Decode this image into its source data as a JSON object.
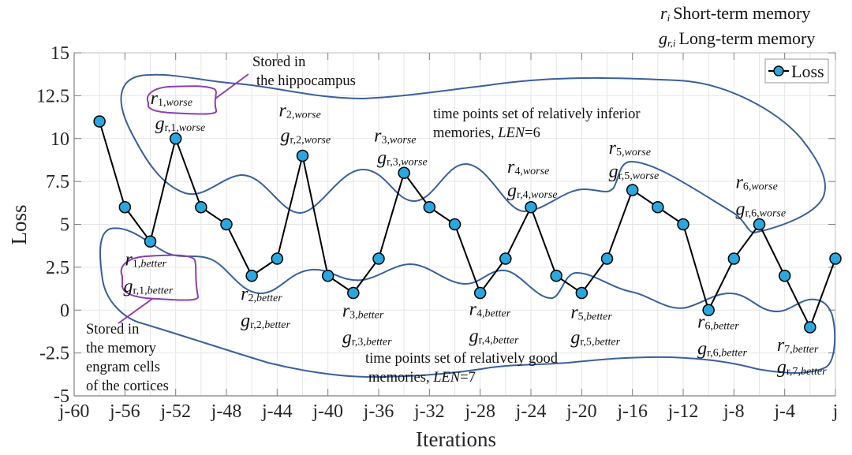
{
  "chart_data": {
    "type": "line",
    "title": "",
    "xlabel": "Iterations",
    "ylabel": "Loss",
    "xlim": [
      -60,
      0
    ],
    "ylim": [
      -5,
      15
    ],
    "grid": true,
    "legend_position": "top-right",
    "x_ticks": [
      {
        "value": -60,
        "label": "j-60"
      },
      {
        "value": -56,
        "label": "j-56"
      },
      {
        "value": -52,
        "label": "j-52"
      },
      {
        "value": -48,
        "label": "j-48"
      },
      {
        "value": -44,
        "label": "j-44"
      },
      {
        "value": -40,
        "label": "j-40"
      },
      {
        "value": -36,
        "label": "j-36"
      },
      {
        "value": -32,
        "label": "j-32"
      },
      {
        "value": -28,
        "label": "j-28"
      },
      {
        "value": -24,
        "label": "j-24"
      },
      {
        "value": -20,
        "label": "j-20"
      },
      {
        "value": -16,
        "label": "j-16"
      },
      {
        "value": -12,
        "label": "j-12"
      },
      {
        "value": -8,
        "label": "j-8"
      },
      {
        "value": -4,
        "label": "j-4"
      },
      {
        "value": 0,
        "label": "j"
      }
    ],
    "y_ticks": [
      {
        "value": 15,
        "label": "15"
      },
      {
        "value": 12.5,
        "label": "12.5"
      },
      {
        "value": 10,
        "label": "10"
      },
      {
        "value": 7.5,
        "label": "7.5"
      },
      {
        "value": 5,
        "label": "5"
      },
      {
        "value": 2.5,
        "label": "2.5"
      },
      {
        "value": 0,
        "label": "0"
      },
      {
        "value": -2.5,
        "label": "-2.5"
      },
      {
        "value": -5,
        "label": "-5"
      }
    ],
    "series": [
      {
        "name": "Loss",
        "color": "#29A8E0",
        "edge_color": "#000000",
        "x": [
          -58,
          -56,
          -54,
          -52,
          -50,
          -48,
          -46,
          -44,
          -42,
          -40,
          -38,
          -36,
          -34,
          -32,
          -30,
          -28,
          -26,
          -24,
          -22,
          -20,
          -18,
          -16,
          -14,
          -12,
          -10,
          -8,
          -6,
          -4,
          -2,
          0
        ],
        "values": [
          11,
          6,
          4,
          10,
          6,
          5,
          2,
          3,
          9,
          2,
          1,
          3,
          8,
          6,
          5,
          1,
          3,
          6,
          2,
          1,
          3,
          7,
          6,
          5,
          0,
          3,
          5,
          2,
          -1,
          3
        ]
      }
    ],
    "legend": [
      {
        "label": "Loss"
      }
    ],
    "top_notes": [
      {
        "symbol": "r",
        "sub": "i",
        "text": "Short-term memory"
      },
      {
        "symbol": "g",
        "sub": "r,i",
        "text": "Long-term memory"
      }
    ],
    "annotations": {
      "hippocampus": [
        "Stored in",
        "the hippocampus"
      ],
      "cortices": [
        "Stored in",
        "the memory",
        "engram cells",
        "of the cortices"
      ],
      "inferior_set": {
        "line1": "time points set of relatively inferior",
        "line2_pre": "memories, ",
        "line2_it": "LEN",
        "line2_post": "=6"
      },
      "good_set": {
        "line1": "time points set of relatively good",
        "line2_pre": "memories, ",
        "line2_it": "LEN",
        "line2_post": "=7"
      },
      "worse_labels": [
        {
          "r_idx": "1",
          "g_idx": "r,1",
          "suffix": ",worse",
          "x": -52
        },
        {
          "r_idx": "2",
          "g_idx": "r,2",
          "suffix": ",worse",
          "x": -42
        },
        {
          "r_idx": "3",
          "g_idx": "r,3",
          "suffix": ",worse",
          "x": -34
        },
        {
          "r_idx": "4",
          "g_idx": "r,4",
          "suffix": ",worse",
          "x": -24
        },
        {
          "r_idx": "5",
          "g_idx": "r,5",
          "suffix": ",worse",
          "x": -16
        },
        {
          "r_idx": "6",
          "g_idx": "r,6",
          "suffix": ",worse",
          "x": -6
        }
      ],
      "better_labels": [
        {
          "r_idx": "1",
          "g_idx": "r,1",
          "suffix": ",better",
          "x": -54
        },
        {
          "r_idx": "2",
          "g_idx": "r,2",
          "suffix": ",better",
          "x": -46
        },
        {
          "r_idx": "3",
          "g_idx": "r,3",
          "suffix": ",better",
          "x": -38
        },
        {
          "r_idx": "4",
          "g_idx": "r,4",
          "suffix": ",better",
          "x": -28
        },
        {
          "r_idx": "5",
          "g_idx": "r,5",
          "suffix": ",better",
          "x": -20
        },
        {
          "r_idx": "6",
          "g_idx": "r,6",
          "suffix": ",better",
          "x": -10
        },
        {
          "r_idx": "7",
          "g_idx": "r,7",
          "suffix": ",better",
          "x": -2
        }
      ]
    },
    "colors": {
      "set_outline": "#3A5F9E",
      "callout": "#8B3FB5",
      "grid": "#E6E6E6",
      "axis": "#7F7F7F"
    }
  }
}
